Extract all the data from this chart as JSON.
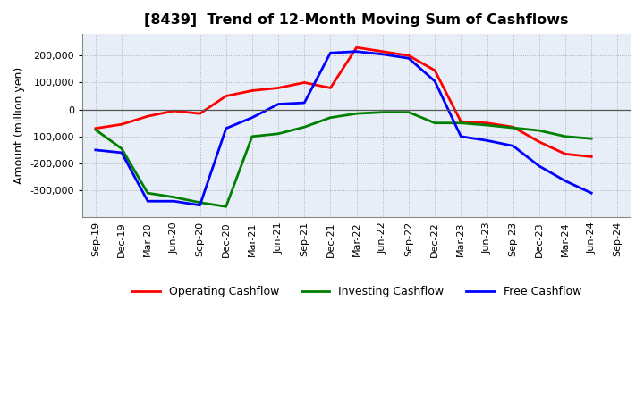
{
  "title": "[8439]  Trend of 12-Month Moving Sum of Cashflows",
  "ylabel": "Amount (million yen)",
  "x_labels": [
    "Sep-19",
    "Dec-19",
    "Mar-20",
    "Jun-20",
    "Sep-20",
    "Dec-20",
    "Mar-21",
    "Jun-21",
    "Sep-21",
    "Dec-21",
    "Mar-22",
    "Jun-22",
    "Sep-22",
    "Dec-22",
    "Mar-23",
    "Jun-23",
    "Sep-23",
    "Dec-23",
    "Mar-24",
    "Jun-24",
    "Sep-24"
  ],
  "operating": [
    -70000,
    -55000,
    -25000,
    -5000,
    -15000,
    50000,
    70000,
    80000,
    100000,
    80000,
    230000,
    215000,
    200000,
    145000,
    -45000,
    -50000,
    -65000,
    -120000,
    -165000,
    -175000,
    null
  ],
  "investing": [
    -75000,
    -145000,
    -310000,
    -325000,
    -345000,
    -360000,
    -100000,
    -90000,
    -65000,
    -30000,
    -15000,
    -10000,
    -10000,
    -50000,
    -50000,
    -58000,
    -68000,
    -78000,
    -100000,
    -108000,
    null
  ],
  "free": [
    -150000,
    -160000,
    -340000,
    -340000,
    -355000,
    -70000,
    -30000,
    20000,
    25000,
    210000,
    215000,
    205000,
    190000,
    105000,
    -100000,
    -115000,
    -135000,
    -210000,
    -265000,
    -310000,
    null
  ],
  "operating_color": "#ff0000",
  "investing_color": "#008000",
  "free_color": "#0000ff",
  "ylim": [
    -400000,
    280000
  ],
  "yticks": [
    -300000,
    -200000,
    -100000,
    0,
    100000,
    200000
  ],
  "grid_color": "#999999",
  "bg_color": "#ffffff",
  "plot_bg": "#e8eef8"
}
